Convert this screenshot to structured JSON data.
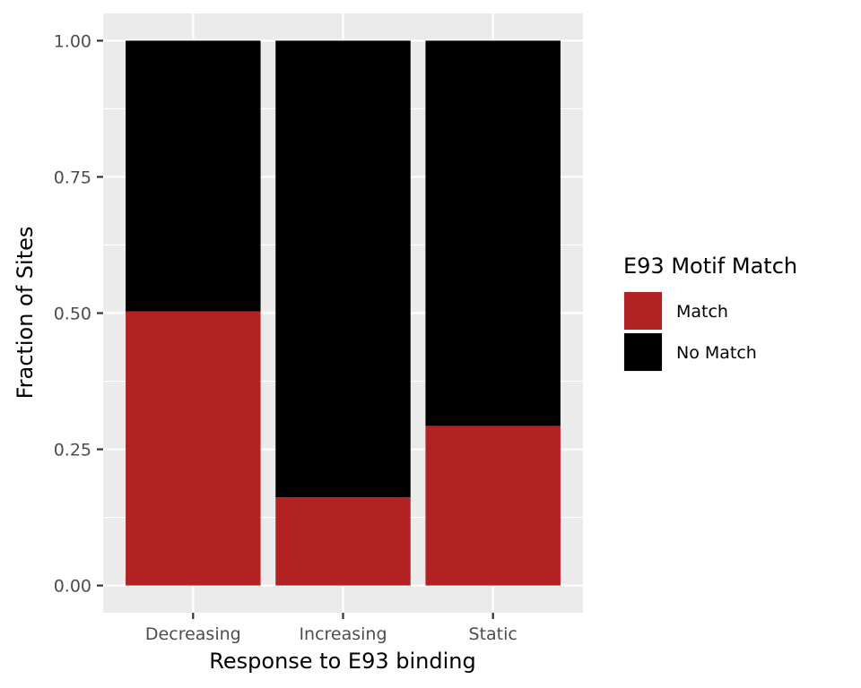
{
  "chart_data": {
    "type": "bar",
    "stacked": true,
    "xlabel": "Response to E93 binding",
    "ylabel": "Fraction of Sites",
    "categories": [
      "Decreasing",
      "Increasing",
      "Static"
    ],
    "series": [
      {
        "name": "Match",
        "color": "#B22222",
        "values": [
          0.503,
          0.162,
          0.293
        ]
      },
      {
        "name": "No Match",
        "color": "#000000",
        "values": [
          0.497,
          0.838,
          0.707
        ]
      }
    ],
    "ylim": [
      -0.05,
      1.05
    ],
    "yticks": [
      0.0,
      0.25,
      0.5,
      0.75,
      1.0
    ],
    "ytick_labels": [
      "0.00",
      "0.25",
      "0.50",
      "0.75",
      "1.00"
    ],
    "grid": true,
    "panel_background": "#EBEBEB",
    "legend": {
      "title": "E93 Motif Match",
      "placement": "right",
      "entries": [
        "Match",
        "No Match"
      ]
    }
  }
}
